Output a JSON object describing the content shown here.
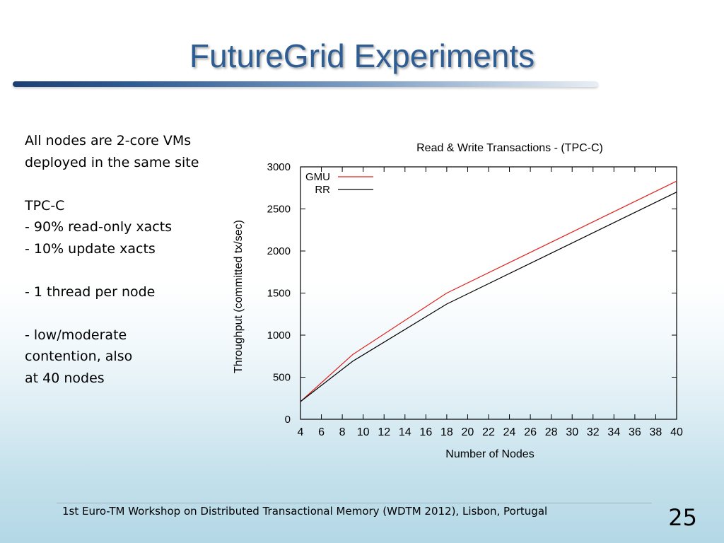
{
  "slide": {
    "title": "FutureGrid Experiments",
    "notes": [
      "All nodes are 2-core VMs",
      "deployed in the same site",
      "",
      "TPC-C",
      "- 90% read-only xacts",
      "- 10% update xacts",
      "",
      "- 1 thread per node",
      "",
      "- low/moderate",
      "contention, also",
      "at 40 nodes"
    ],
    "footer": "1st  Euro-TM Workshop on Distributed Transactional Memory (WDTM 2012), Lisbon, Portugal",
    "page_number": "25"
  },
  "chart_data": {
    "type": "line",
    "title": "Read & Write Transactions - (TPC-C)",
    "xlabel": "Number of Nodes",
    "ylabel": "Throughput (committed tx/sec)",
    "xlim": [
      4,
      40
    ],
    "ylim": [
      0,
      3000
    ],
    "xticks": [
      4,
      6,
      8,
      10,
      12,
      14,
      16,
      18,
      20,
      22,
      24,
      26,
      28,
      30,
      32,
      34,
      36,
      38,
      40
    ],
    "yticks": [
      0,
      500,
      1000,
      1500,
      2000,
      2500,
      3000
    ],
    "legend_position": "top-left",
    "grid": false,
    "series": [
      {
        "name": "GMU",
        "color": "#e0201c",
        "x": [
          4,
          9,
          18,
          40
        ],
        "y": [
          210,
          770,
          1500,
          2830
        ]
      },
      {
        "name": "RR",
        "color": "#000000",
        "x": [
          4,
          9,
          18,
          40
        ],
        "y": [
          210,
          690,
          1370,
          2700
        ]
      }
    ]
  }
}
